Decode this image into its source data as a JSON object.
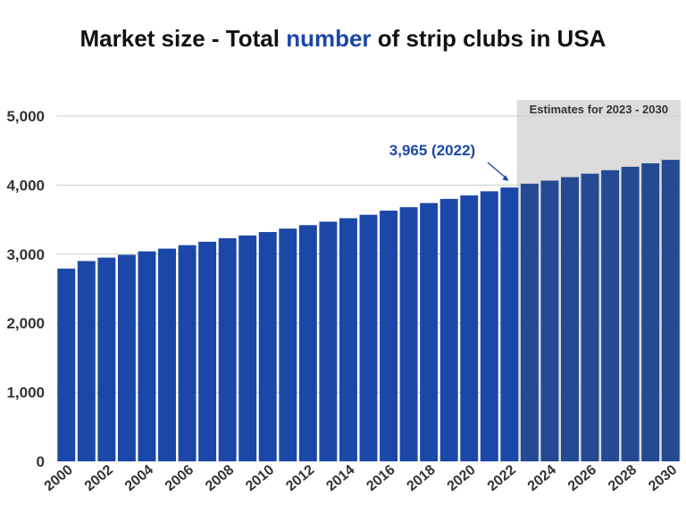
{
  "title": {
    "prefix": "Market size - Total ",
    "highlight": "number",
    "suffix": " of strip clubs in USA"
  },
  "chart_data": {
    "type": "bar",
    "title": "Market size - Total number of strip clubs in USA",
    "categories": [
      "2000",
      "2001",
      "2002",
      "2003",
      "2004",
      "2005",
      "2006",
      "2007",
      "2008",
      "2009",
      "2010",
      "2011",
      "2012",
      "2013",
      "2014",
      "2015",
      "2016",
      "2017",
      "2018",
      "2019",
      "2020",
      "2021",
      "2022",
      "2023",
      "2024",
      "2025",
      "2026",
      "2027",
      "2028",
      "2029",
      "2030"
    ],
    "values": [
      2790,
      2900,
      2950,
      2990,
      3040,
      3080,
      3130,
      3180,
      3230,
      3270,
      3320,
      3370,
      3420,
      3470,
      3520,
      3570,
      3630,
      3680,
      3740,
      3800,
      3850,
      3910,
      3965,
      4020,
      4065,
      4115,
      4165,
      4215,
      4265,
      4315,
      4365
    ],
    "x_tick_labels": [
      "2000",
      "2002",
      "2004",
      "2006",
      "2008",
      "2010",
      "2012",
      "2014",
      "2016",
      "2018",
      "2020",
      "2022",
      "2024",
      "2026",
      "2028",
      "2030"
    ],
    "y_tick_labels": [
      "0",
      "1,000",
      "2,000",
      "3,000",
      "4,000",
      "5,000"
    ],
    "y_ticks": [
      0,
      1000,
      2000,
      3000,
      4000,
      5000
    ],
    "ylim": [
      0,
      5000
    ],
    "xlabel": "",
    "ylabel": "",
    "grid": true,
    "estimate_region": {
      "from": "2023",
      "to": "2030",
      "label": "Estimates for 2023 - 2030"
    },
    "annotation": {
      "text": "3,965 (2022)",
      "category": "2022"
    },
    "colors": {
      "bar": "#1b47a8",
      "estimate_bar": "#234a93",
      "estimate_bg": "#dcdcdc",
      "grid": "#cccccc",
      "annotation": "#1b47a8"
    }
  }
}
